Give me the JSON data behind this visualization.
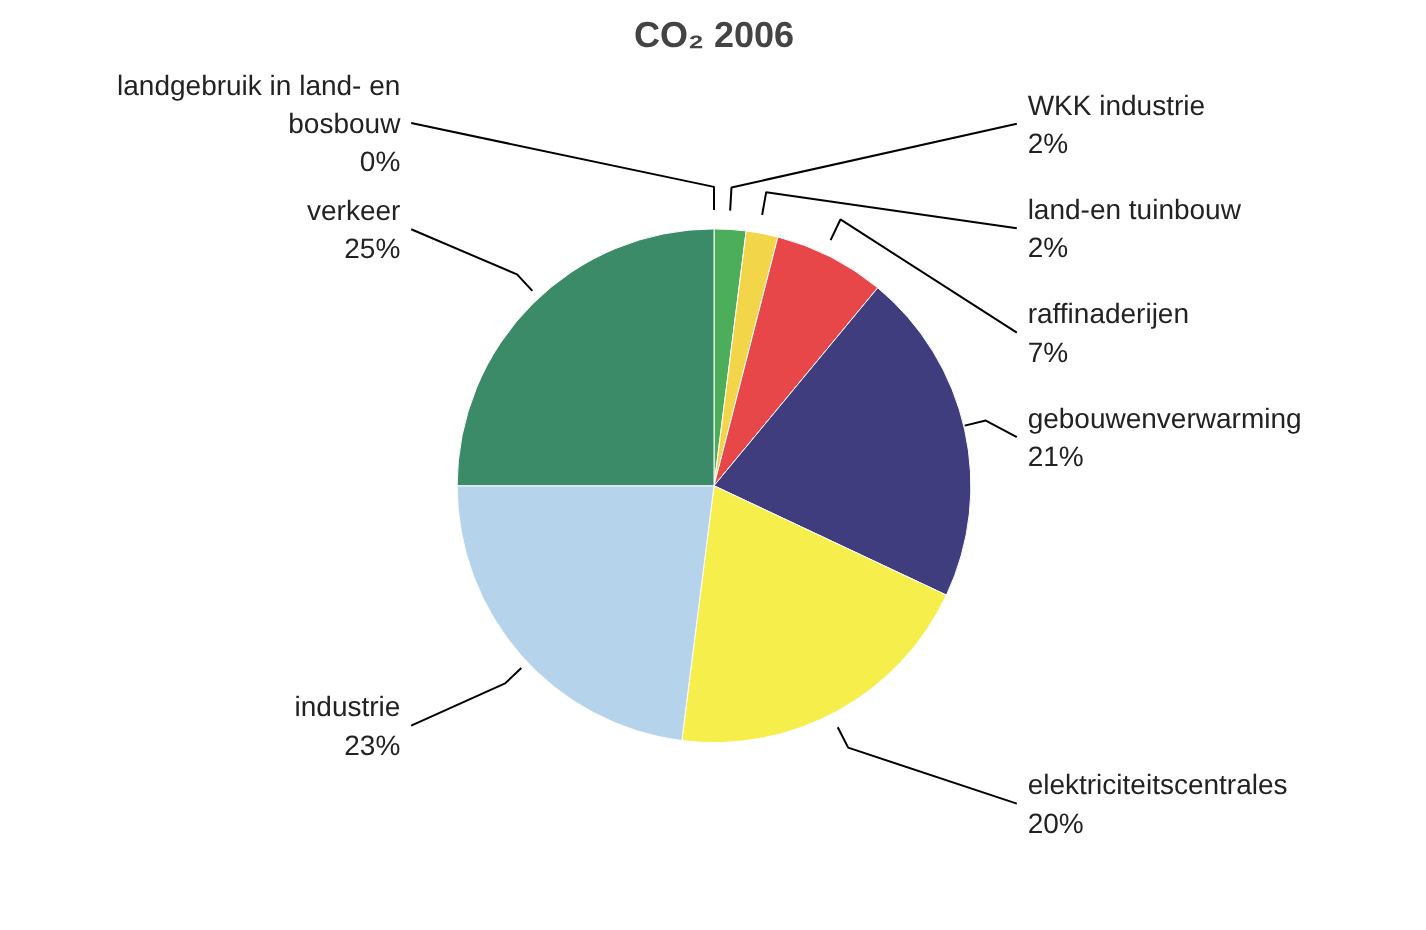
{
  "chart_data": {
    "type": "pie",
    "title": "CO₂ 2006",
    "categories": [
      "landgebruik in land- en bosbouw",
      "WKK industrie",
      "land-en tuinbouw",
      "raffinaderijen",
      "gebouwenverwarming",
      "elektriciteitscentrales",
      "industrie",
      "verkeer"
    ],
    "values": [
      0,
      2,
      2,
      7,
      21,
      20,
      23,
      25
    ],
    "value_labels": [
      "0%",
      "2%",
      "2%",
      "7%",
      "21%",
      "20%",
      "23%",
      "25%"
    ],
    "colors": [
      "#4f7f63",
      "#4cae5a",
      "#f3d54a",
      "#e8474a",
      "#3f3d7e",
      "#f6ee4a",
      "#b5d3ea",
      "#3b8a68"
    ]
  }
}
